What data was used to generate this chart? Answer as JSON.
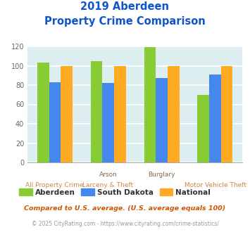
{
  "title_line1": "2019 Aberdeen",
  "title_line2": "Property Crime Comparison",
  "x_labels_top": [
    "",
    "Arson",
    "Burglary",
    ""
  ],
  "x_labels_bottom": [
    "All Property Crime",
    "Larceny & Theft",
    "",
    "Motor Vehicle Theft"
  ],
  "groups": [
    {
      "name": "Aberdeen",
      "color": "#88cc33",
      "values": [
        103,
        105,
        119,
        70
      ]
    },
    {
      "name": "South Dakota",
      "color": "#4488ee",
      "values": [
        83,
        82,
        87,
        91
      ]
    },
    {
      "name": "National",
      "color": "#ffaa22",
      "values": [
        100,
        100,
        100,
        100
      ]
    }
  ],
  "ylim": [
    0,
    120
  ],
  "yticks": [
    0,
    20,
    40,
    60,
    80,
    100,
    120
  ],
  "plot_bg": "#ddeef0",
  "grid_color": "#ffffff",
  "title_color": "#1155cc",
  "xlabel_top_color": "#886644",
  "xlabel_bottom_color": "#cc8844",
  "legend_label_color": "#333333",
  "footnote1": "Compared to U.S. average. (U.S. average equals 100)",
  "footnote2": "© 2025 CityRating.com - https://www.cityrating.com/crime-statistics/",
  "footnote1_color": "#cc5500",
  "footnote2_color": "#9999aa",
  "bar_width": 0.22
}
